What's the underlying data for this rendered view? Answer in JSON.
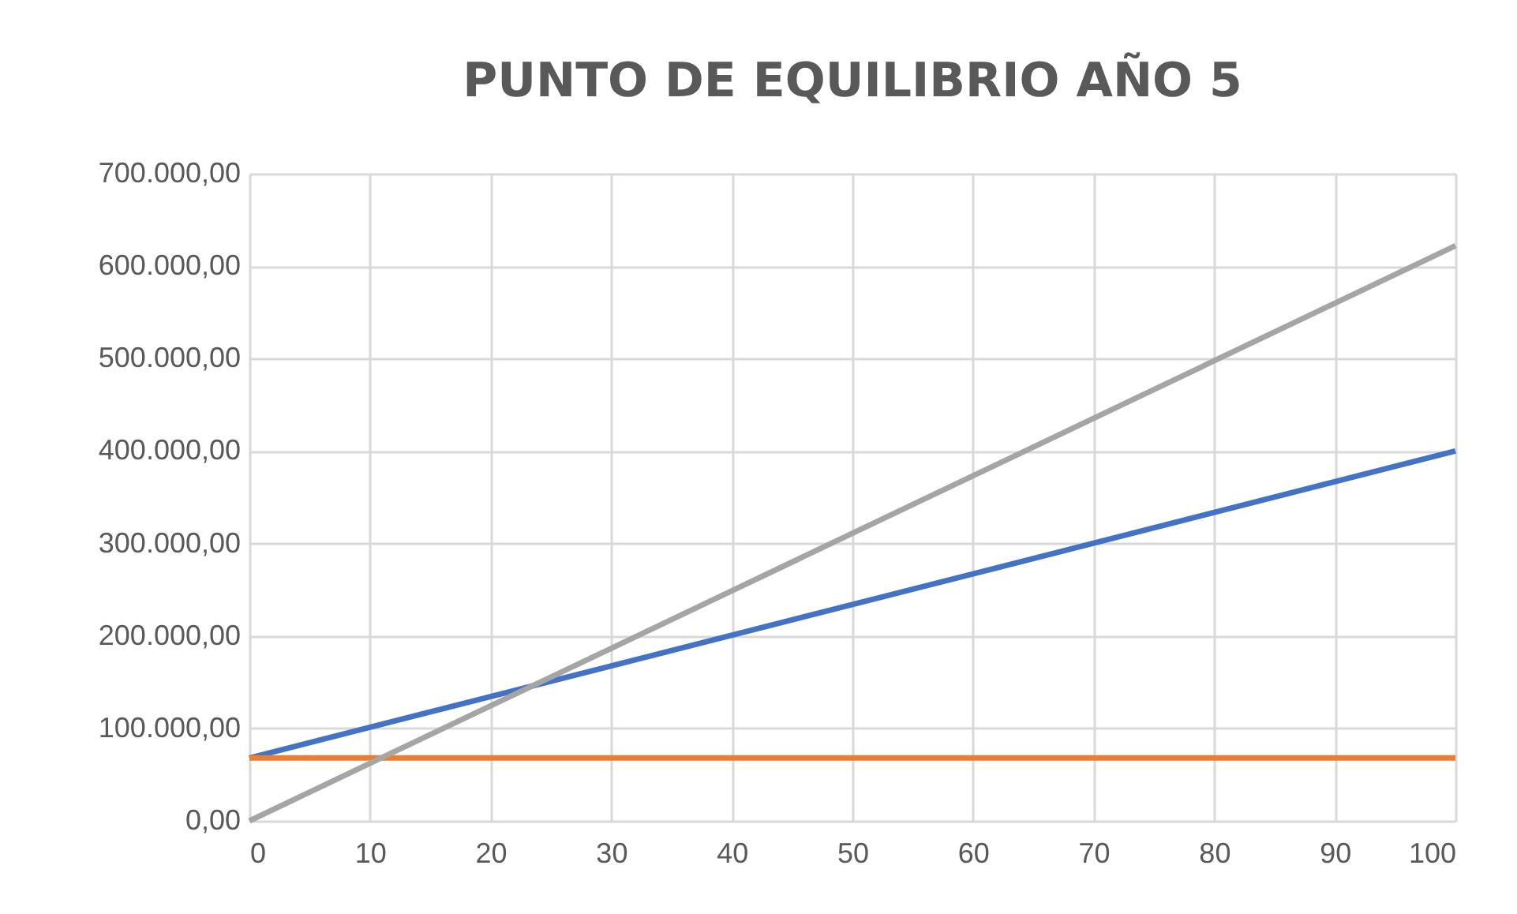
{
  "chart_data": {
    "type": "line",
    "title": "PUNTO DE EQUILIBRIO AÑO 5",
    "x": [
      0,
      100
    ],
    "series": [
      {
        "color": "#4472c4",
        "values": [
          68000,
          400000
        ]
      },
      {
        "color": "#ed7d31",
        "values": [
          68000,
          68000
        ]
      },
      {
        "color": "#a5a5a5",
        "values": [
          0,
          622000
        ]
      }
    ],
    "xlim": [
      0,
      100
    ],
    "xticks": [
      0,
      10,
      20,
      30,
      40,
      50,
      60,
      70,
      80,
      90,
      100
    ],
    "ylim": [
      0,
      700000
    ],
    "yticks": [
      {
        "value": 0,
        "label": "0,00"
      },
      {
        "value": 100000,
        "label": "100.000,00"
      },
      {
        "value": 200000,
        "label": "200.000,00"
      },
      {
        "value": 300000,
        "label": "300.000,00"
      },
      {
        "value": 400000,
        "label": "400.000,00"
      },
      {
        "value": 500000,
        "label": "500.000,00"
      },
      {
        "value": 600000,
        "label": "600.000,00"
      },
      {
        "value": 700000,
        "label": "700.000,00"
      }
    ],
    "grid": true,
    "legend": false,
    "marker": "none",
    "line_style": "solid"
  }
}
